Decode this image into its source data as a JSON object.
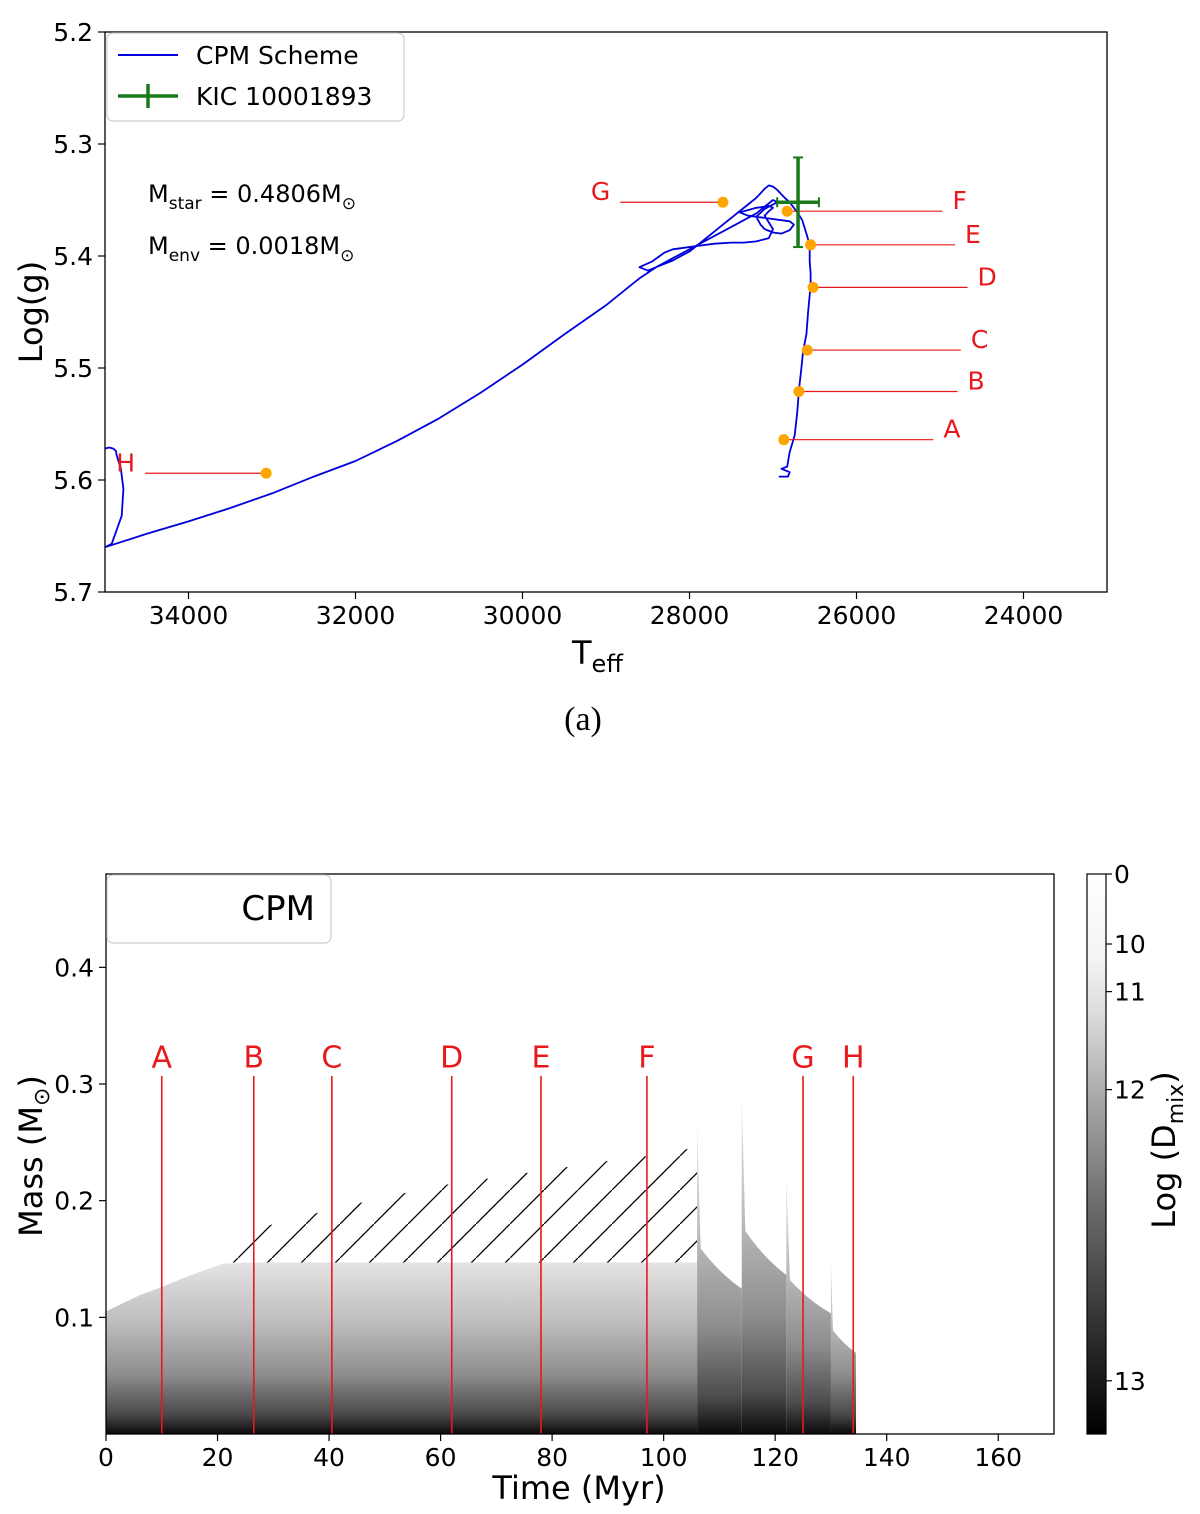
{
  "caption_a": "(a)",
  "colors": {
    "track": "#0000dd",
    "kic": "#1a7a1a",
    "points": "#ffa500",
    "labels": "#e8191c"
  },
  "chart_data": [
    {
      "type": "line",
      "xlabel": "T",
      "xlabel_sub": "eff",
      "ylabel": "Log(g)",
      "xlim": [
        35000,
        23000
      ],
      "ylim": [
        5.7,
        5.2
      ],
      "x_inverted": true,
      "y_inverted": true,
      "xticks": [
        34000,
        32000,
        30000,
        28000,
        26000,
        24000
      ],
      "yticks": [
        5.2,
        5.3,
        5.4,
        5.5,
        5.6,
        5.7
      ],
      "legend_position": "upper-left",
      "legend": [
        "CPM Scheme",
        "KIC 10001893"
      ],
      "annotations": {
        "mstar_prefix": "M",
        "mstar_sub": "star",
        "mstar_value": " = 0.4806M",
        "menv_prefix": "M",
        "menv_sub": "env",
        "menv_value": " = 0.0018M",
        "sun": "⊙"
      },
      "series": [
        {
          "name": "CPM Scheme",
          "x": [
            26930,
            26820,
            26800,
            26900,
            26830,
            26800,
            26740,
            26710,
            26690,
            26660,
            26640,
            26600,
            26580,
            26560,
            26550,
            26550,
            26560,
            26560,
            26580,
            26620,
            26650,
            26700,
            26760,
            26800,
            26860,
            26900,
            26950,
            27000,
            27050,
            27100,
            27150,
            27200,
            27300,
            27400,
            27500,
            27600,
            27700,
            27800,
            27900,
            28000,
            28100,
            28200,
            28300,
            28400,
            28500,
            28600,
            28450,
            28300,
            28200,
            28100,
            27900,
            27700,
            27500,
            27350,
            27200,
            27050,
            27000,
            27050,
            27100,
            27050,
            27000,
            27050,
            27100,
            27200,
            27300,
            27400,
            27300,
            27100,
            26900,
            26800,
            26750,
            26800,
            26900,
            27000,
            27100,
            27150,
            27200,
            27100,
            27000,
            26950,
            27000,
            27100,
            27200,
            27400,
            27600,
            27800,
            28000,
            28200,
            28400,
            28600,
            28800,
            29000,
            29500,
            30000,
            30500,
            31000,
            31500,
            32000,
            32500,
            33000,
            33500,
            34000,
            34500,
            35000,
            34920,
            34800,
            34780,
            34810,
            34860,
            34870,
            34900,
            34950,
            35000
          ],
          "y": [
            5.597,
            5.597,
            5.593,
            5.59,
            5.588,
            5.575,
            5.56,
            5.54,
            5.52,
            5.5,
            5.485,
            5.47,
            5.45,
            5.435,
            5.425,
            5.415,
            5.405,
            5.395,
            5.385,
            5.375,
            5.368,
            5.362,
            5.356,
            5.352,
            5.348,
            5.345,
            5.341,
            5.338,
            5.337,
            5.34,
            5.344,
            5.348,
            5.354,
            5.36,
            5.366,
            5.372,
            5.378,
            5.384,
            5.39,
            5.396,
            5.4,
            5.404,
            5.407,
            5.41,
            5.413,
            5.41,
            5.405,
            5.397,
            5.394,
            5.393,
            5.391,
            5.389,
            5.388,
            5.388,
            5.387,
            5.384,
            5.376,
            5.37,
            5.364,
            5.36,
            5.357,
            5.355,
            5.356,
            5.357,
            5.359,
            5.361,
            5.364,
            5.366,
            5.368,
            5.369,
            5.372,
            5.377,
            5.38,
            5.379,
            5.376,
            5.372,
            5.365,
            5.358,
            5.354,
            5.352,
            5.35,
            5.356,
            5.362,
            5.37,
            5.378,
            5.386,
            5.394,
            5.402,
            5.41,
            5.42,
            5.432,
            5.444,
            5.47,
            5.497,
            5.522,
            5.545,
            5.565,
            5.583,
            5.597,
            5.612,
            5.625,
            5.637,
            5.648,
            5.66,
            5.657,
            5.632,
            5.608,
            5.59,
            5.578,
            5.574,
            5.572,
            5.571,
            5.572
          ]
        },
        {
          "name": "KIC 10001893",
          "x": 26700,
          "y": 5.352,
          "x_err": 250,
          "y_err": 0.04
        }
      ],
      "marked_points": [
        {
          "label": "A",
          "x": 26870,
          "y": 5.564,
          "label_x": 25080
        },
        {
          "label": "B",
          "x": 26690,
          "y": 5.521,
          "label_x": 24790
        },
        {
          "label": "C",
          "x": 26590,
          "y": 5.484,
          "label_x": 24750
        },
        {
          "label": "D",
          "x": 26520,
          "y": 5.428,
          "label_x": 24670
        },
        {
          "label": "E",
          "x": 26550,
          "y": 5.39,
          "label_x": 24820
        },
        {
          "label": "F",
          "x": 26830,
          "y": 5.36,
          "label_x": 24970
        },
        {
          "label": "G",
          "x": 27600,
          "y": 5.352,
          "label_x": 28830
        },
        {
          "label": "H",
          "x": 33070,
          "y": 5.594,
          "label_x": 34520
        }
      ]
    },
    {
      "type": "heatmap",
      "xlabel": "Time (Myr)",
      "ylabel": "Mass (M",
      "ylabel_sun": "⊙",
      "ylabel_close": ")",
      "xlim": [
        0,
        170
      ],
      "ylim": [
        0,
        0.48
      ],
      "xticks": [
        0,
        20,
        40,
        60,
        80,
        100,
        120,
        140,
        160
      ],
      "yticks": [
        0.1,
        0.2,
        0.3,
        0.4
      ],
      "legend_text": "CPM",
      "legend_position": "upper-left",
      "colorbar": {
        "label": "Log (D",
        "label_sub": "mix",
        "label_close": ")",
        "ticks": [
          0,
          10,
          11,
          12,
          13
        ],
        "range": [
          0,
          13.3
        ]
      },
      "core_boundary": {
        "x": [
          0,
          3,
          6,
          10,
          14,
          18,
          21,
          25,
          30,
          40,
          60,
          80,
          100,
          106
        ],
        "y": [
          0.105,
          0.112,
          0.119,
          0.126,
          0.134,
          0.141,
          0.146,
          0.147,
          0.147,
          0.147,
          0.147,
          0.147,
          0.147,
          0.147
        ]
      },
      "hatched_region_top": {
        "x": [
          21,
          30,
          40,
          50,
          60,
          70,
          80,
          90,
          100,
          106
        ],
        "y": [
          0.165,
          0.18,
          0.192,
          0.203,
          0.213,
          0.22,
          0.227,
          0.234,
          0.24,
          0.246
        ]
      },
      "pulses": [
        {
          "start": 106,
          "end": 114,
          "top": 0.265
        },
        {
          "start": 114,
          "end": 122,
          "top": 0.29
        },
        {
          "start": 122,
          "end": 130,
          "top": 0.22
        },
        {
          "start": 130,
          "end": 134.5,
          "top": 0.148
        }
      ],
      "markers": [
        {
          "label": "A",
          "x": 10
        },
        {
          "label": "B",
          "x": 26.5
        },
        {
          "label": "C",
          "x": 40.5
        },
        {
          "label": "D",
          "x": 62
        },
        {
          "label": "E",
          "x": 78
        },
        {
          "label": "F",
          "x": 97
        },
        {
          "label": "G",
          "x": 125
        },
        {
          "label": "H",
          "x": 134
        }
      ]
    }
  ]
}
